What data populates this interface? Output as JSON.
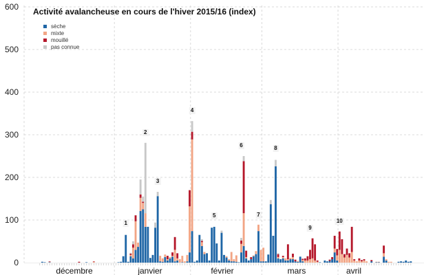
{
  "chart_data": {
    "type": "bar",
    "stacked": true,
    "title": "Activité avalancheuse en cours de l'hiver 2015/16 (index)",
    "xlabel": "",
    "ylabel": "",
    "ylim": [
      0,
      600
    ],
    "yticks": [
      "0",
      "100",
      "200",
      "300",
      "400",
      "500",
      "600"
    ],
    "xlim": [
      "2015-12-01",
      "2016-04-30"
    ],
    "months": [
      "décembre",
      "janvier",
      "février",
      "mars",
      "avril"
    ],
    "grid": true,
    "legend_position": "top-left",
    "series": [
      {
        "name": "sèche",
        "color": "#1f66a6"
      },
      {
        "name": "mixte",
        "color": "#f2a585"
      },
      {
        "name": "mouillé",
        "color": "#b5182b"
      },
      {
        "name": "pas connue",
        "color": "#c8c8c8"
      }
    ],
    "columns": [
      "date",
      "sèche",
      "mixte",
      "mouillé",
      "pas connue"
    ],
    "bars": [
      [
        "2015-12-02",
        2,
        0,
        0,
        0
      ],
      [
        "2015-12-03",
        1,
        0,
        0,
        0
      ],
      [
        "2015-12-05",
        1,
        1,
        1,
        0
      ],
      [
        "2015-12-17",
        0,
        0,
        2,
        0
      ],
      [
        "2015-12-20",
        1,
        0,
        0,
        0
      ],
      [
        "2015-12-23",
        0,
        2,
        1,
        0
      ],
      [
        "2016-01-02",
        1,
        0,
        0,
        0
      ],
      [
        "2016-01-03",
        2,
        0,
        0,
        0
      ],
      [
        "2016-01-04",
        15,
        0,
        0,
        0
      ],
      [
        "2016-01-05",
        65,
        0,
        0,
        0
      ],
      [
        "2016-01-06",
        2,
        0,
        0,
        0
      ],
      [
        "2016-01-07",
        15,
        3,
        3,
        2
      ],
      [
        "2016-01-08",
        10,
        25,
        8,
        7
      ],
      [
        "2016-01-09",
        30,
        67,
        14,
        0
      ],
      [
        "2016-01-10",
        37,
        10,
        0,
        0
      ],
      [
        "2016-01-11",
        121,
        31,
        8,
        35
      ],
      [
        "2016-01-12",
        125,
        15,
        3,
        12
      ],
      [
        "2016-01-13",
        84,
        32,
        0,
        165
      ],
      [
        "2016-01-14",
        84,
        0,
        0,
        0
      ],
      [
        "2016-01-15",
        11,
        0,
        0,
        0
      ],
      [
        "2016-01-16",
        18,
        0,
        0,
        0
      ],
      [
        "2016-01-17",
        82,
        0,
        0,
        12
      ],
      [
        "2016-01-18",
        156,
        0,
        0,
        10
      ],
      [
        "2016-01-19",
        3,
        13,
        0,
        0
      ],
      [
        "2016-01-20",
        2,
        8,
        0,
        0
      ],
      [
        "2016-01-21",
        13,
        6,
        0,
        0
      ],
      [
        "2016-01-22",
        5,
        3,
        8,
        0
      ],
      [
        "2016-01-23",
        10,
        3,
        0,
        0
      ],
      [
        "2016-01-24",
        14,
        2,
        8,
        0
      ],
      [
        "2016-01-25",
        3,
        27,
        30,
        0
      ],
      [
        "2016-01-26",
        5,
        5,
        12,
        0
      ],
      [
        "2016-01-27",
        0,
        8,
        0,
        0
      ],
      [
        "2016-01-28",
        1,
        15,
        0,
        0
      ],
      [
        "2016-01-29",
        0,
        3,
        0,
        0
      ],
      [
        "2016-01-30",
        3,
        15,
        0,
        0
      ],
      [
        "2016-01-31",
        24,
        108,
        38,
        0
      ],
      [
        "2016-02-01",
        74,
        215,
        18,
        25
      ],
      [
        "2016-02-02",
        2,
        0,
        0,
        0
      ],
      [
        "2016-02-03",
        5,
        0,
        0,
        0
      ],
      [
        "2016-02-04",
        65,
        0,
        0,
        0
      ],
      [
        "2016-02-05",
        39,
        9,
        3,
        4
      ],
      [
        "2016-02-06",
        20,
        5,
        0,
        0
      ],
      [
        "2016-02-07",
        22,
        0,
        0,
        0
      ],
      [
        "2016-02-08",
        5,
        0,
        0,
        0
      ],
      [
        "2016-02-09",
        82,
        0,
        0,
        0
      ],
      [
        "2016-02-10",
        84,
        0,
        0,
        0
      ],
      [
        "2016-02-11",
        45,
        0,
        0,
        0
      ],
      [
        "2016-02-12",
        5,
        0,
        0,
        0
      ],
      [
        "2016-02-13",
        70,
        0,
        0,
        5
      ],
      [
        "2016-02-14",
        18,
        0,
        0,
        0
      ],
      [
        "2016-02-15",
        12,
        3,
        0,
        0
      ],
      [
        "2016-02-16",
        5,
        3,
        0,
        0
      ],
      [
        "2016-02-17",
        3,
        22,
        0,
        0
      ],
      [
        "2016-02-18",
        3,
        5,
        0,
        0
      ],
      [
        "2016-02-19",
        2,
        15,
        0,
        0
      ],
      [
        "2016-02-20",
        1,
        0,
        0,
        0
      ],
      [
        "2016-02-21",
        24,
        20,
        8,
        6
      ],
      [
        "2016-02-22",
        39,
        77,
        122,
        12
      ],
      [
        "2016-02-23",
        10,
        3,
        15,
        0
      ],
      [
        "2016-02-24",
        5,
        0,
        0,
        0
      ],
      [
        "2016-02-25",
        8,
        0,
        5,
        0
      ],
      [
        "2016-02-26",
        15,
        2,
        0,
        0
      ],
      [
        "2016-02-27",
        20,
        7,
        0,
        0
      ],
      [
        "2016-02-28",
        74,
        15,
        0,
        0
      ],
      [
        "2016-02-29",
        3,
        27,
        0,
        0
      ],
      [
        "2016-03-01",
        3,
        32,
        0,
        0
      ],
      [
        "2016-03-02",
        3,
        0,
        0,
        0
      ],
      [
        "2016-03-03",
        19,
        0,
        0,
        0
      ],
      [
        "2016-03-04",
        137,
        0,
        0,
        10
      ],
      [
        "2016-03-05",
        63,
        0,
        0,
        0
      ],
      [
        "2016-03-06",
        226,
        0,
        0,
        15
      ],
      [
        "2016-03-07",
        10,
        3,
        7,
        2
      ],
      [
        "2016-03-08",
        8,
        0,
        0,
        0
      ],
      [
        "2016-03-09",
        10,
        3,
        3,
        0
      ],
      [
        "2016-03-10",
        5,
        5,
        0,
        0
      ],
      [
        "2016-03-11",
        5,
        3,
        35,
        0
      ],
      [
        "2016-03-12",
        8,
        3,
        0,
        0
      ],
      [
        "2016-03-13",
        8,
        5,
        8,
        0
      ],
      [
        "2016-03-14",
        3,
        0,
        4,
        0
      ],
      [
        "2016-03-15",
        2,
        2,
        0,
        0
      ],
      [
        "2016-03-16",
        14,
        0,
        0,
        0
      ],
      [
        "2016-03-17",
        3,
        3,
        3,
        0
      ],
      [
        "2016-03-18",
        0,
        5,
        5,
        0
      ],
      [
        "2016-03-19",
        0,
        5,
        10,
        0
      ],
      [
        "2016-03-20",
        0,
        8,
        22,
        0
      ],
      [
        "2016-03-21",
        0,
        10,
        47,
        0
      ],
      [
        "2016-03-22",
        0,
        5,
        38,
        0
      ],
      [
        "2016-03-23",
        0,
        2,
        3,
        0
      ],
      [
        "2016-03-24",
        1,
        0,
        0,
        0
      ],
      [
        "2016-03-26",
        5,
        0,
        0,
        0
      ],
      [
        "2016-03-27",
        3,
        0,
        0,
        0
      ],
      [
        "2016-03-28",
        4,
        0,
        3,
        0
      ],
      [
        "2016-03-29",
        8,
        0,
        5,
        0
      ],
      [
        "2016-03-30",
        24,
        9,
        30,
        0
      ],
      [
        "2016-03-31",
        5,
        12,
        15,
        0
      ],
      [
        "2016-04-01",
        0,
        30,
        43,
        0
      ],
      [
        "2016-04-02",
        0,
        20,
        35,
        0
      ],
      [
        "2016-04-03",
        0,
        12,
        8,
        0
      ],
      [
        "2016-04-04",
        0,
        18,
        15,
        0
      ],
      [
        "2016-04-05",
        0,
        12,
        10,
        0
      ],
      [
        "2016-04-06",
        0,
        25,
        59,
        0
      ],
      [
        "2016-04-07",
        0,
        5,
        3,
        0
      ],
      [
        "2016-04-08",
        0,
        3,
        0,
        0
      ],
      [
        "2016-04-09",
        0,
        5,
        5,
        0
      ],
      [
        "2016-04-10",
        0,
        3,
        3,
        0
      ],
      [
        "2016-04-11",
        0,
        5,
        3,
        0
      ],
      [
        "2016-04-12",
        0,
        3,
        0,
        0
      ],
      [
        "2016-04-14",
        3,
        0,
        3,
        0
      ],
      [
        "2016-04-16",
        1,
        1,
        0,
        0
      ],
      [
        "2016-04-17",
        1,
        1,
        0,
        0
      ],
      [
        "2016-04-19",
        14,
        8,
        18,
        0
      ],
      [
        "2016-04-20",
        5,
        3,
        0,
        0
      ],
      [
        "2016-04-21",
        0,
        2,
        0,
        0
      ],
      [
        "2016-04-22",
        0,
        2,
        0,
        0
      ],
      [
        "2016-04-25",
        2,
        0,
        0,
        0
      ],
      [
        "2016-04-26",
        3,
        0,
        0,
        0
      ],
      [
        "2016-04-27",
        2,
        0,
        0,
        0
      ],
      [
        "2016-04-28",
        5,
        0,
        0,
        0
      ],
      [
        "2016-04-29",
        2,
        0,
        0,
        0
      ],
      [
        "2016-04-30",
        3,
        0,
        0,
        0
      ]
    ],
    "annotations": [
      {
        "label": "1",
        "date": "2016-01-05",
        "y": 92
      },
      {
        "label": "2",
        "date": "2016-01-13",
        "y": 305
      },
      {
        "label": "3",
        "date": "2016-01-18",
        "y": 190
      },
      {
        "label": "4",
        "date": "2016-02-01",
        "y": 357
      },
      {
        "label": "5",
        "date": "2016-02-10",
        "y": 110
      },
      {
        "label": "6",
        "date": "2016-02-21",
        "y": 275
      },
      {
        "label": "7",
        "date": "2016-02-28",
        "y": 112
      },
      {
        "label": "8",
        "date": "2016-03-06",
        "y": 267
      },
      {
        "label": "9",
        "date": "2016-03-20",
        "y": 81
      },
      {
        "label": "10",
        "date": "2016-04-01",
        "y": 97
      }
    ]
  }
}
